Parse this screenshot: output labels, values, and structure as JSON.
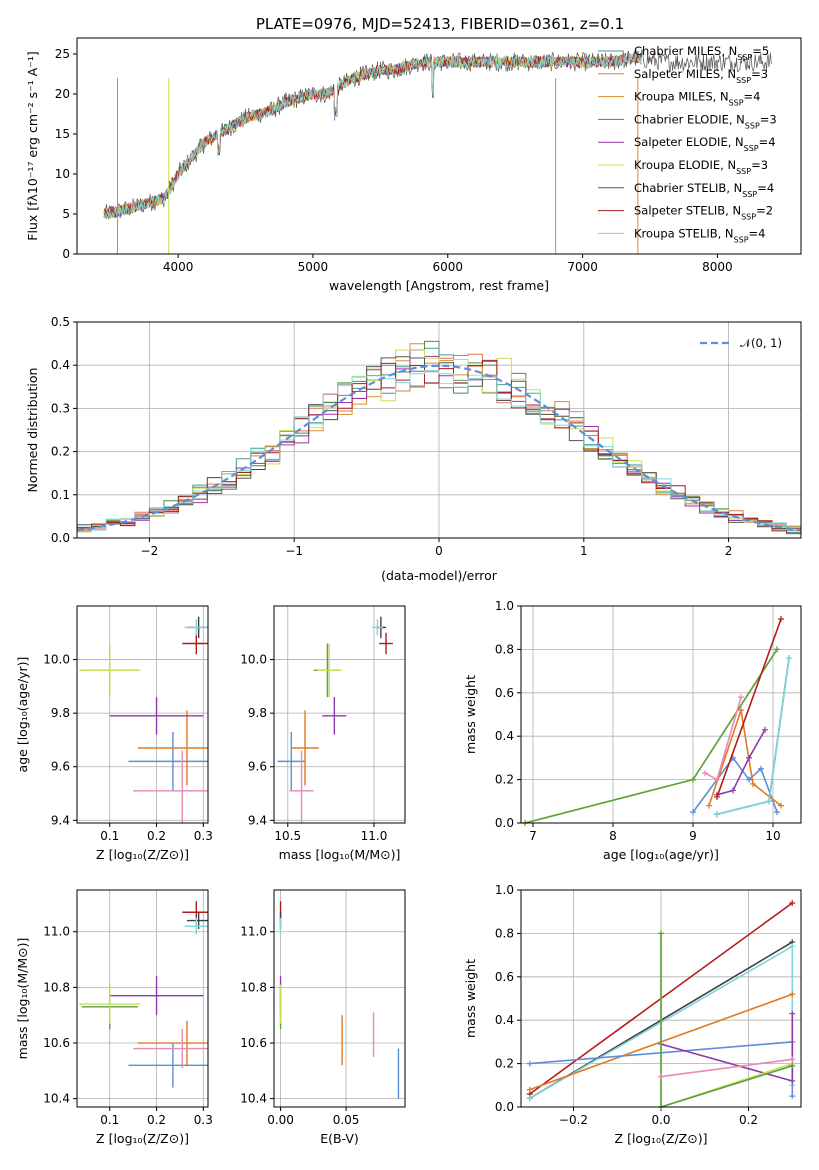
{
  "title": "PLATE=0976, MJD=52413, FIBERID=0361, z=0.1",
  "colors": {
    "chabrier_miles": "#4c9a8a",
    "salpeter_miles": "#e3735e",
    "kroupa_miles": "#d98f2b",
    "chabrier_elodie": "#4c8c4a",
    "salpeter_elodie": "#9932a8",
    "kroupa_elodie": "#c7e05a",
    "chabrier_stelib": "#555555",
    "salpeter_stelib": "#a81d1d",
    "kroupa_stelib": "#7fd6dc",
    "gauss": "#5b8fd9",
    "blue": "#5b8fd9",
    "orange": "#e07b20",
    "pink": "#e889b8",
    "purple": "#8e3aad",
    "green": "#5aa040",
    "red": "#b51a1a",
    "cyan": "#7fd6dc",
    "lime": "#c7e05a",
    "dark": "#404040"
  },
  "chart_data": [
    {
      "id": "spectrum",
      "type": "line",
      "title": "PLATE=0976, MJD=52413, FIBERID=0361, z=0.1",
      "xlabel": "wavelength [Angstrom, rest frame]",
      "ylabel": "Flux [fλ10⁻¹⁷ erg cm⁻² s⁻¹ A⁻¹]",
      "xlim": [
        3250,
        8620
      ],
      "ylim": [
        0,
        27
      ],
      "xticks": [
        "4000",
        "5000",
        "6000",
        "7000",
        "8000"
      ],
      "yticks": [
        "0",
        "5",
        "10",
        "15",
        "20",
        "25"
      ],
      "legend_position": "upper right",
      "legend": [
        {
          "name": "Chabrier MILES, N",
          "sub": "SSP",
          "suffix": "=5",
          "color_key": "chabrier_miles"
        },
        {
          "name": "Salpeter MILES, N",
          "sub": "SSP",
          "suffix": "=3",
          "color_key": "salpeter_miles"
        },
        {
          "name": "Kroupa MILES, N",
          "sub": "SSP",
          "suffix": "=4",
          "color_key": "kroupa_miles"
        },
        {
          "name": "Chabrier ELODIE, N",
          "sub": "SSP",
          "suffix": "=3",
          "color_key": "chabrier_elodie"
        },
        {
          "name": "Salpeter ELODIE, N",
          "sub": "SSP",
          "suffix": "=4",
          "color_key": "salpeter_elodie"
        },
        {
          "name": "Kroupa ELODIE, N",
          "sub": "SSP",
          "suffix": "=3",
          "color_key": "kroupa_elodie"
        },
        {
          "name": "Chabrier STELIB, N",
          "sub": "SSP",
          "suffix": "=4",
          "color_key": "chabrier_stelib"
        },
        {
          "name": "Salpeter STELIB, N",
          "sub": "SSP",
          "suffix": "=2",
          "color_key": "salpeter_stelib"
        },
        {
          "name": "Kroupa STELIB, N",
          "sub": "SSP",
          "suffix": "=4",
          "color_key": "kroupa_stelib"
        }
      ],
      "continuum": {
        "x": [
          3450,
          3600,
          3700,
          3800,
          3900,
          4000,
          4100,
          4200,
          4300,
          4400,
          4500,
          4600,
          4700,
          4800,
          4900,
          5000,
          5100,
          5200,
          5300,
          5400,
          5500,
          5600,
          5700,
          5800,
          5900,
          6000,
          6200,
          6400,
          6600,
          6800,
          7000,
          7200,
          7400,
          7600,
          7800,
          8000,
          8200,
          8400
        ],
        "y": [
          5,
          5.5,
          6,
          6.5,
          7,
          10,
          12,
          14,
          15,
          16,
          17,
          17.5,
          18,
          19,
          19.5,
          20,
          20,
          21,
          22,
          22.5,
          23,
          23,
          23.5,
          24,
          24,
          24,
          24,
          24,
          24,
          24,
          24,
          24,
          24.5,
          24,
          24,
          24,
          24,
          24
        ]
      },
      "dips": [
        {
          "x": 3930,
          "y": 0,
          "color_key": "kroupa_elodie"
        },
        {
          "x": 3550,
          "y": 0,
          "color_key": "salpeter_miles"
        },
        {
          "x": 6800,
          "y": 0,
          "color_key": "kroupa_miles"
        },
        {
          "x": 7410,
          "y": 0,
          "color_key": "kroupa_miles"
        }
      ]
    },
    {
      "id": "residuals",
      "type": "step",
      "xlabel": "(data-model)/error",
      "ylabel": "Normed distribution",
      "xlim": [
        -2.5,
        2.5
      ],
      "ylim": [
        0,
        0.5
      ],
      "xticks": [
        {
          "v": -2,
          "t": "−2"
        },
        {
          "v": -1,
          "t": "−1"
        },
        {
          "v": 0,
          "t": "0"
        },
        {
          "v": 1,
          "t": "1"
        },
        {
          "v": 2,
          "t": "2"
        }
      ],
      "yticks": [
        "0.0",
        "0.1",
        "0.2",
        "0.3",
        "0.4",
        "0.5"
      ],
      "grid": true,
      "legend_position": "upper right",
      "legend": [
        {
          "name": "𝒩(0, 1)",
          "color_key": "gauss",
          "style": "dashed"
        }
      ],
      "bin_width": 0.1,
      "bins_start": -2.5
    },
    {
      "id": "age-vs-Z",
      "type": "errorbar",
      "xlabel": "Z [log₁₀(Z/Z⊙)]",
      "ylabel": "age  [log₁₀(age/yr)]",
      "xlim": [
        0.03,
        0.31
      ],
      "ylim": [
        9.39,
        10.2
      ],
      "xticks": [
        {
          "v": 0.1,
          "t": "0.1"
        },
        {
          "v": 0.2,
          "t": "0.2"
        },
        {
          "v": 0.3,
          "t": "0.3"
        }
      ],
      "yticks": [
        {
          "v": 9.4,
          "t": "9.4"
        },
        {
          "v": 9.6,
          "t": "9.6"
        },
        {
          "v": 9.8,
          "t": "9.8"
        },
        {
          "v": 10.0,
          "t": "10.0"
        }
      ],
      "grid": true,
      "points": [
        {
          "x": 0.235,
          "y": 9.62,
          "xerr": 0.095,
          "yerr": 0.11,
          "color_key": "blue"
        },
        {
          "x": 0.265,
          "y": 9.67,
          "xerr": 0.105,
          "yerr": 0.14,
          "color_key": "orange"
        },
        {
          "x": 0.255,
          "y": 9.51,
          "xerr": 0.105,
          "yerr": 0.15,
          "color_key": "pink"
        },
        {
          "x": 0.2,
          "y": 9.79,
          "xerr": 0.1,
          "yerr": 0.07,
          "color_key": "purple"
        },
        {
          "x": 0.1,
          "y": 9.96,
          "xerr": 0.06,
          "yerr": 0.1,
          "color_key": "green"
        },
        {
          "x": 0.1,
          "y": 9.96,
          "xerr": 0.065,
          "yerr": 0.1,
          "color_key": "lime"
        },
        {
          "x": 0.285,
          "y": 10.06,
          "xerr": 0.03,
          "yerr": 0.04,
          "color_key": "red"
        },
        {
          "x": 0.29,
          "y": 10.12,
          "xerr": 0.025,
          "yerr": 0.04,
          "color_key": "dark"
        },
        {
          "x": 0.285,
          "y": 10.12,
          "xerr": 0.025,
          "yerr": 0.03,
          "color_key": "cyan"
        }
      ]
    },
    {
      "id": "age-vs-mass",
      "type": "errorbar",
      "xlabel": "mass [log₁₀(M/M⊙)]",
      "ylabel": "",
      "xlim": [
        10.42,
        11.18
      ],
      "ylim": [
        9.39,
        10.2
      ],
      "xticks": [
        {
          "v": 10.5,
          "t": "10.5"
        },
        {
          "v": 11.0,
          "t": "11.0"
        }
      ],
      "yticks": [
        {
          "v": 9.4,
          "t": "9.4"
        },
        {
          "v": 9.6,
          "t": "9.6"
        },
        {
          "v": 9.8,
          "t": "9.8"
        },
        {
          "v": 10.0,
          "t": "10.0"
        }
      ],
      "grid": true,
      "points": [
        {
          "x": 10.52,
          "y": 9.62,
          "xerr": 0.08,
          "yerr": 0.11,
          "color_key": "blue"
        },
        {
          "x": 10.6,
          "y": 9.67,
          "xerr": 0.08,
          "yerr": 0.14,
          "color_key": "orange"
        },
        {
          "x": 10.58,
          "y": 9.51,
          "xerr": 0.07,
          "yerr": 0.15,
          "color_key": "pink"
        },
        {
          "x": 10.77,
          "y": 9.79,
          "xerr": 0.07,
          "yerr": 0.07,
          "color_key": "purple"
        },
        {
          "x": 10.73,
          "y": 9.96,
          "xerr": 0.08,
          "yerr": 0.1,
          "color_key": "green"
        },
        {
          "x": 10.74,
          "y": 9.96,
          "xerr": 0.07,
          "yerr": 0.1,
          "color_key": "lime"
        },
        {
          "x": 11.07,
          "y": 10.06,
          "xerr": 0.04,
          "yerr": 0.04,
          "color_key": "red"
        },
        {
          "x": 11.04,
          "y": 10.12,
          "xerr": 0.03,
          "yerr": 0.04,
          "color_key": "dark"
        },
        {
          "x": 11.02,
          "y": 10.12,
          "xerr": 0.03,
          "yerr": 0.03,
          "color_key": "cyan"
        }
      ]
    },
    {
      "id": "mass-weight-vs-age",
      "type": "line",
      "xlabel": "age  [log₁₀(age/yr)]",
      "ylabel": "mass weight",
      "xlim": [
        6.85,
        10.35
      ],
      "ylim": [
        0,
        1
      ],
      "xticks": [
        {
          "v": 7,
          "t": "7"
        },
        {
          "v": 8,
          "t": "8"
        },
        {
          "v": 9,
          "t": "9"
        },
        {
          "v": 10,
          "t": "10"
        }
      ],
      "yticks": [
        {
          "v": 0,
          "t": "0.0"
        },
        {
          "v": 0.2,
          "t": "0.2"
        },
        {
          "v": 0.4,
          "t": "0.4"
        },
        {
          "v": 0.6,
          "t": "0.6"
        },
        {
          "v": 0.8,
          "t": "0.8"
        },
        {
          "v": 1.0,
          "t": "1.0"
        }
      ],
      "grid": true,
      "series": [
        {
          "color_key": "lime",
          "x": [
            6.9,
            9.0,
            10.05
          ],
          "y": [
            0.0,
            0.2,
            0.8
          ]
        },
        {
          "color_key": "green",
          "x": [
            6.9,
            9.0,
            10.05
          ],
          "y": [
            0.0,
            0.2,
            0.8
          ]
        },
        {
          "color_key": "blue",
          "x": [
            9.0,
            9.5,
            9.7,
            9.85,
            10.05
          ],
          "y": [
            0.05,
            0.3,
            0.2,
            0.25,
            0.05
          ]
        },
        {
          "color_key": "orange",
          "x": [
            9.2,
            9.6,
            9.75,
            10.1
          ],
          "y": [
            0.08,
            0.52,
            0.18,
            0.08
          ]
        },
        {
          "color_key": "pink",
          "x": [
            9.15,
            9.3,
            9.6
          ],
          "y": [
            0.23,
            0.2,
            0.58
          ]
        },
        {
          "color_key": "purple",
          "x": [
            9.3,
            9.5,
            9.7,
            9.9
          ],
          "y": [
            0.13,
            0.15,
            0.3,
            0.43
          ]
        },
        {
          "color_key": "red",
          "x": [
            9.3,
            10.1
          ],
          "y": [
            0.12,
            0.94
          ]
        },
        {
          "color_key": "dark",
          "x": [
            9.3,
            9.95,
            10.2
          ],
          "y": [
            0.04,
            0.1,
            0.76
          ]
        },
        {
          "color_key": "cyan",
          "x": [
            9.3,
            9.95,
            10.2
          ],
          "y": [
            0.04,
            0.1,
            0.76
          ]
        }
      ]
    },
    {
      "id": "mass-vs-Z",
      "type": "errorbar",
      "xlabel": "Z [log₁₀(Z/Z⊙)]",
      "ylabel": "mass [log₁₀(M/M⊙)]",
      "xlim": [
        0.03,
        0.31
      ],
      "ylim": [
        10.37,
        11.15
      ],
      "xticks": [
        {
          "v": 0.1,
          "t": "0.1"
        },
        {
          "v": 0.2,
          "t": "0.2"
        },
        {
          "v": 0.3,
          "t": "0.3"
        }
      ],
      "yticks": [
        {
          "v": 10.4,
          "t": "10.4"
        },
        {
          "v": 10.6,
          "t": "10.6"
        },
        {
          "v": 10.8,
          "t": "10.8"
        },
        {
          "v": 11.0,
          "t": "11.0"
        }
      ],
      "grid": true,
      "points": [
        {
          "x": 0.235,
          "y": 10.52,
          "xerr": 0.095,
          "yerr": 0.08,
          "color_key": "blue"
        },
        {
          "x": 0.265,
          "y": 10.6,
          "xerr": 0.105,
          "yerr": 0.08,
          "color_key": "orange"
        },
        {
          "x": 0.255,
          "y": 10.58,
          "xerr": 0.105,
          "yerr": 0.07,
          "color_key": "pink"
        },
        {
          "x": 0.2,
          "y": 10.77,
          "xerr": 0.1,
          "yerr": 0.07,
          "color_key": "purple"
        },
        {
          "x": 0.1,
          "y": 10.73,
          "xerr": 0.06,
          "yerr": 0.08,
          "color_key": "green"
        },
        {
          "x": 0.1,
          "y": 10.74,
          "xerr": 0.065,
          "yerr": 0.07,
          "color_key": "lime"
        },
        {
          "x": 0.285,
          "y": 11.07,
          "xerr": 0.03,
          "yerr": 0.04,
          "color_key": "red"
        },
        {
          "x": 0.29,
          "y": 11.04,
          "xerr": 0.025,
          "yerr": 0.03,
          "color_key": "dark"
        },
        {
          "x": 0.285,
          "y": 11.02,
          "xerr": 0.025,
          "yerr": 0.03,
          "color_key": "cyan"
        }
      ]
    },
    {
      "id": "mass-vs-ebv",
      "type": "errorbar",
      "xlabel": "E(B-V)",
      "ylabel": "",
      "xlim": [
        -0.005,
        0.095
      ],
      "ylim": [
        10.37,
        11.15
      ],
      "xticks": [
        {
          "v": 0.0,
          "t": "0.00"
        },
        {
          "v": 0.05,
          "t": "0.05"
        }
      ],
      "yticks": [
        {
          "v": 10.4,
          "t": "10.4"
        },
        {
          "v": 10.6,
          "t": "10.6"
        },
        {
          "v": 10.8,
          "t": "10.8"
        },
        {
          "v": 11.0,
          "t": "11.0"
        }
      ],
      "grid": true,
      "points": [
        {
          "x": 0.09,
          "y": 10.49,
          "xerr": 0.0,
          "yerr": 0.09,
          "color_key": "blue"
        },
        {
          "x": 0.047,
          "y": 10.61,
          "xerr": 0.0,
          "yerr": 0.09,
          "color_key": "orange"
        },
        {
          "x": 0.071,
          "y": 10.63,
          "xerr": 0.0,
          "yerr": 0.08,
          "color_key": "pink"
        },
        {
          "x": 0.0,
          "y": 10.77,
          "xerr": 0.0,
          "yerr": 0.07,
          "color_key": "purple"
        },
        {
          "x": 0.0,
          "y": 10.73,
          "xerr": 0.0,
          "yerr": 0.08,
          "color_key": "green"
        },
        {
          "x": 0.0,
          "y": 10.74,
          "xerr": 0.0,
          "yerr": 0.07,
          "color_key": "lime"
        },
        {
          "x": 0.0,
          "y": 11.07,
          "xerr": 0.0,
          "yerr": 0.04,
          "color_key": "red"
        },
        {
          "x": 0.0,
          "y": 11.04,
          "xerr": 0.0,
          "yerr": 0.03,
          "color_key": "dark"
        },
        {
          "x": 0.0,
          "y": 11.02,
          "xerr": 0.0,
          "yerr": 0.03,
          "color_key": "cyan"
        }
      ]
    },
    {
      "id": "mass-weight-vs-Z",
      "type": "line",
      "xlabel": "Z [log₁₀(Z/Z⊙)]",
      "ylabel": "mass weight",
      "xlim": [
        -0.32,
        0.32
      ],
      "ylim": [
        0,
        1
      ],
      "xticks": [
        {
          "v": -0.2,
          "t": "−0.2"
        },
        {
          "v": 0.0,
          "t": "0.0"
        },
        {
          "v": 0.2,
          "t": "0.2"
        }
      ],
      "yticks": [
        {
          "v": 0,
          "t": "0.0"
        },
        {
          "v": 0.2,
          "t": "0.2"
        },
        {
          "v": 0.4,
          "t": "0.4"
        },
        {
          "v": 0.6,
          "t": "0.6"
        },
        {
          "v": 0.8,
          "t": "0.8"
        },
        {
          "v": 1.0,
          "t": "1.0"
        }
      ],
      "grid": true,
      "series": [
        {
          "color_key": "red",
          "x": [
            -0.3,
            0.3
          ],
          "y": [
            0.06,
            0.94
          ]
        },
        {
          "color_key": "dark",
          "x": [
            -0.3,
            0.3
          ],
          "y": [
            0.04,
            0.76
          ]
        },
        {
          "color_key": "cyan",
          "x": [
            -0.3,
            0.3,
            0.3
          ],
          "y": [
            0.04,
            0.74,
            0.1
          ]
        },
        {
          "color_key": "orange",
          "x": [
            -0.3,
            0.3
          ],
          "y": [
            0.08,
            0.52
          ]
        },
        {
          "color_key": "blue",
          "x": [
            -0.3,
            0.3,
            0.3
          ],
          "y": [
            0.2,
            0.3,
            0.05
          ]
        },
        {
          "color_key": "purple",
          "x": [
            0.0,
            0.3,
            0.3
          ],
          "y": [
            0.29,
            0.12,
            0.43
          ]
        },
        {
          "color_key": "lime",
          "x": [
            0.0,
            0.0,
            0.3
          ],
          "y": [
            0.8,
            0.0,
            0.2
          ]
        },
        {
          "color_key": "green",
          "x": [
            0.0,
            0.0,
            0.3
          ],
          "y": [
            0.8,
            0.0,
            0.19
          ]
        },
        {
          "color_key": "pink",
          "x": [
            0.0,
            0.3
          ],
          "y": [
            0.14,
            0.22
          ]
        }
      ]
    }
  ]
}
